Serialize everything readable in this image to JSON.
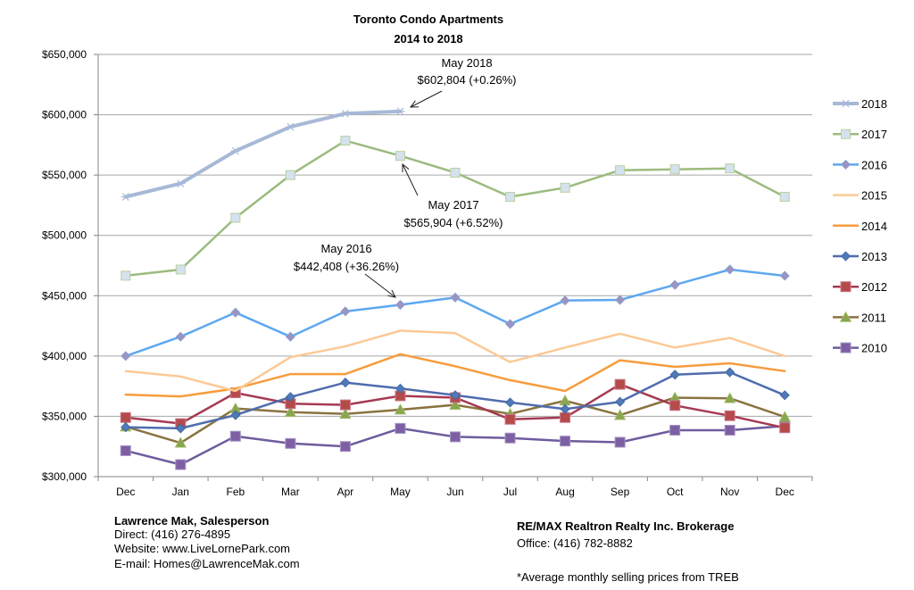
{
  "chart_data": {
    "type": "line",
    "title": "Toronto Condo Apartments",
    "subtitle": "2014 to 2018",
    "xlabel": "",
    "ylabel": "",
    "ylim": [
      300000,
      650000
    ],
    "yticks": [
      300000,
      350000,
      400000,
      450000,
      500000,
      550000,
      600000,
      650000
    ],
    "ytick_labels": [
      "$300,000",
      "$350,000",
      "$400,000",
      "$450,000",
      "$500,000",
      "$550,000",
      "$600,000",
      "$650,000"
    ],
    "grid": true,
    "legend_position": "right",
    "categories": [
      "Dec",
      "Jan",
      "Feb",
      "Mar",
      "Apr",
      "May",
      "Jun",
      "Jul",
      "Aug",
      "Sep",
      "Oct",
      "Nov",
      "Dec"
    ],
    "series": [
      {
        "name": "2018",
        "color": "#a7b9d6",
        "marker": "star",
        "width": 4,
        "values": [
          532000,
          543000,
          570000,
          590000,
          601000,
          602804,
          null,
          null,
          null,
          null,
          null,
          null,
          null
        ]
      },
      {
        "name": "2017",
        "color": "#9bbb7e",
        "marker": "square-light",
        "width": 2.5,
        "values": [
          466600,
          471700,
          514600,
          550000,
          578500,
          565904,
          552000,
          532000,
          539500,
          554000,
          554800,
          555500,
          532000
        ]
      },
      {
        "name": "2016",
        "color": "#5ea8f0",
        "marker": "diamond-light",
        "width": 2.5,
        "values": [
          400000,
          416000,
          436000,
          416000,
          437000,
          442408,
          448500,
          426500,
          446000,
          446500,
          459000,
          471700,
          466500
        ]
      },
      {
        "name": "2015",
        "color": "#fcc995",
        "marker": "none",
        "width": 2.5,
        "values": [
          387500,
          383000,
          371000,
          399000,
          408000,
          421000,
          419000,
          395000,
          407000,
          418500,
          407000,
          415000,
          400000
        ]
      },
      {
        "name": "2014",
        "color": "#f79c3c",
        "marker": "none",
        "width": 2.5,
        "values": [
          368000,
          366500,
          373000,
          385000,
          385000,
          401500,
          391500,
          380000,
          371000,
          396500,
          391000,
          394000,
          387500
        ]
      },
      {
        "name": "2013",
        "color": "#4f6dad",
        "marker": "diamond",
        "width": 2.5,
        "values": [
          341000,
          340000,
          351000,
          366000,
          378000,
          373000,
          367500,
          361500,
          356000,
          362000,
          384500,
          386500,
          367500
        ]
      },
      {
        "name": "2012",
        "color": "#a63a53",
        "marker": "square",
        "width": 2.5,
        "values": [
          349000,
          344000,
          369500,
          360500,
          359500,
          367000,
          365500,
          347500,
          349000,
          376500,
          359000,
          350500,
          340500
        ]
      },
      {
        "name": "2011",
        "color": "#8a7340",
        "marker": "triangle",
        "width": 2.5,
        "values": [
          341500,
          328000,
          356500,
          353500,
          352000,
          355500,
          359500,
          352000,
          363000,
          351000,
          365500,
          365000,
          349500
        ]
      },
      {
        "name": "2010",
        "color": "#6e5c9e",
        "marker": "square-purple",
        "width": 2.5,
        "values": [
          321500,
          310000,
          333500,
          327500,
          325000,
          340000,
          333000,
          332000,
          329500,
          328500,
          338500,
          338500,
          342000
        ]
      }
    ],
    "annotations": [
      {
        "line1": "May 2018",
        "line2": "$602,804 (+0.26%)",
        "series": "2018",
        "index": 5
      },
      {
        "line1": "May 2017",
        "line2": "$565,904 (+6.52%)",
        "series": "2017",
        "index": 5
      },
      {
        "line1": "May 2016",
        "line2": "$442,408 (+36.26%)",
        "series": "2016",
        "index": 5
      }
    ]
  },
  "footer": {
    "agent_name": "Lawrence Mak, Salesperson",
    "direct": "Direct:  (416) 276-4895",
    "website": "Website:  www.LiveLornePark.com",
    "email": "E-mail:  Homes@LawrenceMak.com",
    "brokerage": "RE/MAX Realtron Realty Inc. Brokerage",
    "office": "Office: (416) 782-8882",
    "note": "*Average monthly selling prices from TREB"
  }
}
